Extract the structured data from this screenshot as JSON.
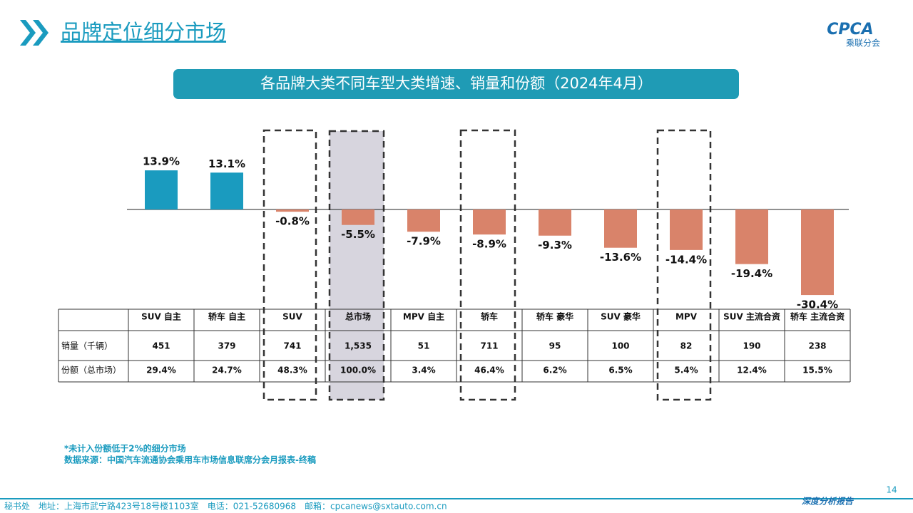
{
  "header": {
    "title": "品牌定位细分市场",
    "banner": "各品牌大类不同车型大类增速、销量和份额（2024年4月）",
    "logo": "CPCA",
    "logo_sub": "乘联分会"
  },
  "chart_data": {
    "type": "bar",
    "categories": [
      "SUV 自主",
      "轿车 自主",
      "SUV",
      "总市场",
      "MPV 自主",
      "轿车",
      "轿车 豪华",
      "SUV 豪华",
      "MPV",
      "SUV 主流合资",
      "轿车 主流合资"
    ],
    "values": [
      13.9,
      13.1,
      -0.8,
      -5.5,
      -7.9,
      -8.9,
      -9.3,
      -13.6,
      -14.4,
      -19.4,
      -30.4
    ],
    "value_labels": [
      "13.9%",
      "13.1%",
      "-0.8%",
      "-5.5%",
      "-7.9%",
      "-8.9%",
      "-9.3%",
      "-13.6%",
      "-14.4%",
      "-19.4%",
      "-30.4%"
    ],
    "positive_color": "#1a9bbf",
    "negative_color": "#d9836a"
  },
  "table": {
    "rows": [
      {
        "label": "销量（千辆）",
        "cells": [
          "451",
          "379",
          "741",
          "1,535",
          "51",
          "711",
          "95",
          "100",
          "82",
          "190",
          "238"
        ]
      },
      {
        "label": "份额（总市场）",
        "cells": [
          "29.4%",
          "24.7%",
          "48.3%",
          "100.0%",
          "3.4%",
          "46.4%",
          "6.2%",
          "6.5%",
          "5.4%",
          "12.4%",
          "15.5%"
        ]
      }
    ]
  },
  "notes": [
    "*未计入份额低于2%的细分市场",
    "数据来源：中国汽车流通协会乘用车市场信息联席分会月报表-终稿"
  ],
  "footer": {
    "address": "秘书处　地址：上海市武宁路423号18号楼1103室　电话：021-52680968　邮箱：cpcanews@sxtauto.com.cn",
    "tag": "深度分析报告",
    "page": "14"
  }
}
